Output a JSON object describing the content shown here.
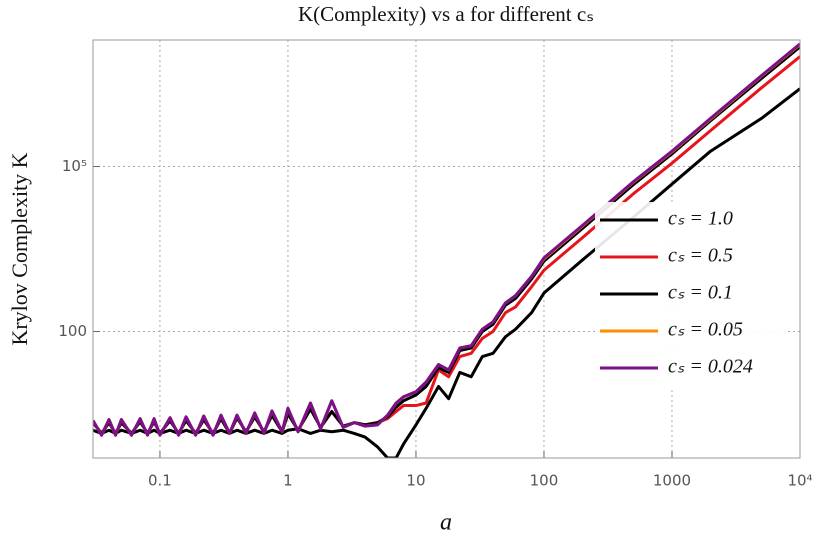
{
  "chart_data": {
    "type": "line",
    "title": "K(Complexity) vs a for different cₛ",
    "x_label": "a",
    "y_label": "Krylov Complexity K",
    "x_scale": "log",
    "y_scale": "log",
    "grid": true,
    "legend": "right",
    "xlim": [
      0.03,
      10000
    ],
    "ylim": [
      0.5,
      20000000
    ],
    "xticks": [
      0.1,
      1,
      10,
      100,
      1000,
      {
        "value": 10000,
        "label": "10⁴"
      }
    ],
    "yticks": [
      100,
      {
        "value": 100000,
        "label": "10⁵"
      }
    ],
    "x": [
      0.03,
      0.035,
      0.04,
      0.045,
      0.05,
      0.06,
      0.07,
      0.08,
      0.09,
      0.1,
      0.12,
      0.14,
      0.16,
      0.19,
      0.22,
      0.26,
      0.3,
      0.35,
      0.4,
      0.47,
      0.55,
      0.65,
      0.75,
      0.9,
      1,
      1.2,
      1.5,
      1.8,
      2.2,
      2.7,
      3.3,
      4,
      5,
      6,
      7,
      8,
      10,
      12,
      15,
      18,
      22,
      27,
      33,
      40,
      50,
      60,
      80,
      100,
      200,
      500,
      1000,
      2000,
      5000,
      10000
    ],
    "series": [
      {
        "name": "cₛ = 1.0",
        "color": "#000000",
        "values": [
          1.6,
          1.4,
          1.6,
          1.4,
          1.6,
          1.4,
          1.6,
          1.4,
          1.6,
          1.4,
          1.6,
          1.4,
          1.6,
          1.4,
          1.6,
          1.4,
          1.6,
          1.4,
          1.6,
          1.4,
          1.6,
          1.4,
          1.6,
          1.4,
          1.6,
          1.7,
          1.4,
          1.6,
          1.5,
          1.6,
          1.4,
          1.2,
          0.8,
          0.5,
          0.5,
          0.9,
          2,
          4,
          10,
          6,
          18,
          15,
          35,
          40,
          80,
          110,
          220,
          500,
          2000,
          12000,
          48000,
          190000,
          750000,
          2600000
        ]
      },
      {
        "name": "cₛ = 0.5",
        "color": "#e8141c",
        "values": [
          2.2,
          1.4,
          2.2,
          1.4,
          2.2,
          1.4,
          2.3,
          1.4,
          2.3,
          1.4,
          2.4,
          1.4,
          2.4,
          1.4,
          2.5,
          1.4,
          2.6,
          1.4,
          2.7,
          1.5,
          2.8,
          1.5,
          3.0,
          1.5,
          3.2,
          1.6,
          3.9,
          1.8,
          3.5,
          1.9,
          2.2,
          2.0,
          2.2,
          2.6,
          3.5,
          4.5,
          4.5,
          5,
          20,
          15,
          35,
          40,
          75,
          100,
          220,
          280,
          650,
          1300,
          5100,
          32000,
          115000,
          450000,
          2700000,
          10000000
        ]
      },
      {
        "name": "cₛ = 0.1",
        "color": "#000000",
        "values": [
          2.2,
          1.4,
          2.2,
          1.4,
          2.2,
          1.4,
          2.3,
          1.4,
          2.3,
          1.4,
          2.4,
          1.4,
          2.4,
          1.4,
          2.5,
          1.4,
          2.6,
          1.4,
          2.7,
          1.5,
          2.8,
          1.5,
          3.0,
          1.5,
          3.2,
          1.6,
          3.9,
          1.8,
          3.5,
          1.9,
          2.2,
          2.0,
          2.2,
          2.8,
          4.2,
          5.5,
          7,
          10,
          22,
          18,
          45,
          50,
          100,
          135,
          300,
          400,
          900,
          1900,
          7500,
          47000,
          170000,
          680000,
          4000000,
          15000000
        ]
      },
      {
        "name": "cₛ = 0.05",
        "color": "#ff8c00",
        "values": [
          2.4,
          1.3,
          2.5,
          1.3,
          2.5,
          1.3,
          2.6,
          1.3,
          2.6,
          1.3,
          2.7,
          1.3,
          2.8,
          1.3,
          2.9,
          1.3,
          3.0,
          1.4,
          3.0,
          1.4,
          3.3,
          1.4,
          3.6,
          1.5,
          4,
          1.5,
          5,
          1.7,
          5.5,
          1.8,
          2.2,
          1.9,
          2.0,
          3.0,
          5.0,
          6.5,
          8,
          12,
          25,
          20,
          50,
          55,
          110,
          150,
          330,
          450,
          1000,
          2100,
          8300,
          52000,
          185000,
          730000,
          4400000,
          16500000
        ]
      },
      {
        "name": "cₛ = 0.024",
        "color": "#7b0f8c",
        "values": [
          2.4,
          1.3,
          2.5,
          1.3,
          2.5,
          1.3,
          2.6,
          1.3,
          2.6,
          1.3,
          2.7,
          1.3,
          2.8,
          1.3,
          2.9,
          1.3,
          3.0,
          1.4,
          3.0,
          1.4,
          3.3,
          1.4,
          3.6,
          1.5,
          4,
          1.5,
          5,
          1.7,
          5.5,
          1.8,
          2.2,
          1.9,
          2.0,
          3.0,
          5.0,
          6.5,
          8,
          12,
          25,
          20,
          50,
          55,
          110,
          150,
          330,
          450,
          1000,
          2180,
          8500,
          53000,
          190000,
          750000,
          4500000,
          17000000
        ]
      }
    ]
  }
}
